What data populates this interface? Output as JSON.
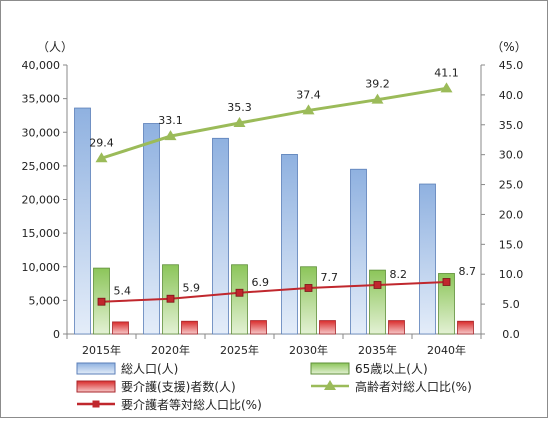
{
  "chart_data": {
    "type": "bar",
    "categories": [
      "2015年",
      "2020年",
      "2025年",
      "2030年",
      "2035年",
      "2040年"
    ],
    "y_left": {
      "unit": "（人）",
      "range": [
        0,
        40000
      ],
      "ticks": [
        "0",
        "5,000",
        "10,000",
        "15,000",
        "20,000",
        "25,000",
        "30,000",
        "35,000",
        "40,000"
      ]
    },
    "y_right": {
      "unit": "（%）",
      "range": [
        0,
        45
      ],
      "ticks": [
        "0.0",
        "5.0",
        "10.0",
        "15.0",
        "20.0",
        "25.0",
        "30.0",
        "35.0",
        "40.0",
        "45.0"
      ]
    },
    "grid": false,
    "legend_position": "bottom",
    "series": [
      {
        "name": "総人口(人)",
        "kind": "bar",
        "axis": "left",
        "color": "#8fb1e0",
        "values": [
          33600,
          31300,
          29100,
          26700,
          24500,
          22300
        ]
      },
      {
        "name": "65歳以上(人)",
        "kind": "bar",
        "axis": "left",
        "color": "#9acc6e",
        "values": [
          9800,
          10300,
          10300,
          10000,
          9500,
          9000
        ]
      },
      {
        "name": "要介護(支援)者数(人)",
        "kind": "bar",
        "axis": "left",
        "color": "#e05050",
        "values": [
          1800,
          1900,
          2000,
          2000,
          2000,
          1900
        ]
      },
      {
        "name": "高齢者対総人口比(%)",
        "kind": "line",
        "axis": "right",
        "color": "#9bbb59",
        "marker": "triangle",
        "values": [
          29.4,
          33.1,
          35.3,
          37.4,
          39.2,
          41.1
        ],
        "labels": [
          "29.4",
          "33.1",
          "35.3",
          "37.4",
          "39.2",
          "41.1"
        ]
      },
      {
        "name": "要介護者等対総人口比(%)",
        "kind": "line",
        "axis": "right",
        "color": "#c0272d",
        "marker": "square",
        "values": [
          5.4,
          5.9,
          6.9,
          7.7,
          8.2,
          8.7
        ],
        "labels": [
          "5.4",
          "5.9",
          "6.9",
          "7.7",
          "8.2",
          "8.7"
        ]
      }
    ]
  }
}
